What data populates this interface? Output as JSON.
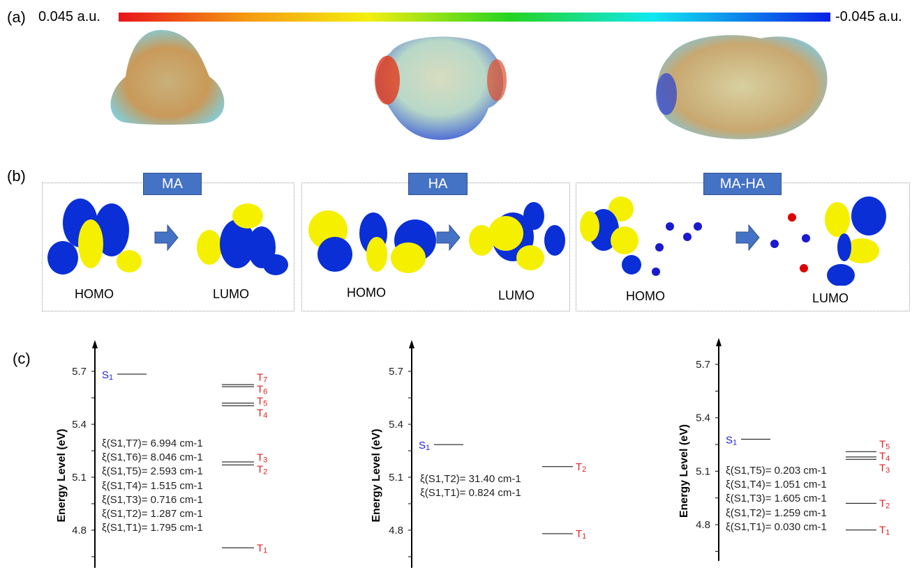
{
  "panel_labels": {
    "a": "(a)",
    "b": "(b)",
    "c": "(c)"
  },
  "colorbar": {
    "max_label": "0.045 a.u.",
    "min_label": "-0.045 a.u.",
    "colors": [
      "#e8141a",
      "#f5ee10",
      "#24d420",
      "#10e8f0",
      "#0a20e6"
    ]
  },
  "orbitals": {
    "systems": [
      {
        "name": "MA",
        "homo": "HOMO",
        "lumo": "LUMO"
      },
      {
        "name": "HA",
        "homo": "HOMO",
        "lumo": "LUMO"
      },
      {
        "name": "MA-HA",
        "homo": "HOMO",
        "lumo": "LUMO"
      }
    ],
    "colors": {
      "positive": "#f5f000",
      "negative": "#0a2fd6",
      "tag": "#4472c4"
    }
  },
  "chart_data": [
    {
      "type": "energy-level",
      "ylabel": "Energy Level (eV)",
      "yticks": [
        4.8,
        5.1,
        5.4,
        5.7
      ],
      "ylim": [
        4.65,
        5.85
      ],
      "singlet": {
        "label": "S",
        "sub": "1",
        "value": 5.684
      },
      "triplets": [
        {
          "label": "T",
          "sub": "1",
          "value": 4.7
        },
        {
          "label": "T",
          "sub": "2",
          "value": 5.17
        },
        {
          "label": "T",
          "sub": "3",
          "value": 5.187
        },
        {
          "label": "T",
          "sub": "4",
          "value": 5.505
        },
        {
          "label": "T",
          "sub": "5",
          "value": 5.52
        },
        {
          "label": "T",
          "sub": "6",
          "value": 5.613
        },
        {
          "label": "T",
          "sub": "7",
          "value": 5.625
        }
      ],
      "soc": [
        "ξ(S1,T7)= 6.994 cm-1",
        "ξ(S1,T6)= 8.046 cm-1",
        "ξ(S1,T5)= 2.593 cm-1",
        "ξ(S1,T4)= 1.515 cm-1",
        "ξ(S1,T3)= 0.716 cm-1",
        "ξ(S1,T2)= 1.287 cm-1",
        "ξ(S1,T1)= 1.795 cm-1"
      ]
    },
    {
      "type": "energy-level",
      "ylabel": "Energy Level (eV)",
      "yticks": [
        4.8,
        5.1,
        5.4,
        5.7
      ],
      "ylim": [
        4.65,
        5.85
      ],
      "singlet": {
        "label": "S",
        "sub": "1",
        "value": 5.285
      },
      "triplets": [
        {
          "label": "T",
          "sub": "1",
          "value": 4.78
        },
        {
          "label": "T",
          "sub": "2",
          "value": 5.16
        }
      ],
      "soc": [
        "ξ(S1,T2)= 31.40 cm-1",
        "ξ(S1,T1)= 0.824 cm-1"
      ]
    },
    {
      "type": "energy-level",
      "ylabel": "Energy Level (eV)",
      "yticks": [
        4.8,
        5.1,
        5.4,
        5.7
      ],
      "ylim": [
        4.65,
        5.85
      ],
      "singlet": {
        "label": "S",
        "sub": "1",
        "value": 5.28
      },
      "triplets": [
        {
          "label": "T",
          "sub": "1",
          "value": 4.77
        },
        {
          "label": "T",
          "sub": "2",
          "value": 4.92
        },
        {
          "label": "T",
          "sub": "3",
          "value": 5.167
        },
        {
          "label": "T",
          "sub": "4",
          "value": 5.18
        },
        {
          "label": "T",
          "sub": "5",
          "value": 5.21
        }
      ],
      "soc": [
        "ξ(S1,T5)= 0.203 cm-1",
        "ξ(S1,T4)= 1.051 cm-1",
        "ξ(S1,T3)= 1.605 cm-1",
        "ξ(S1,T2)= 1.259 cm-1",
        "ξ(S1,T1)= 0.030 cm-1"
      ]
    }
  ]
}
